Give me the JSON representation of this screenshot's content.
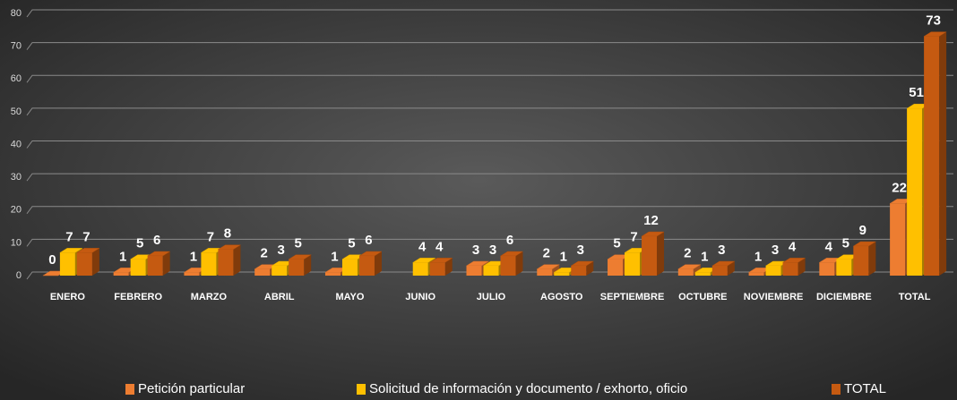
{
  "chart_data": {
    "type": "bar3d",
    "categories": [
      "ENERO",
      "FEBRERO",
      "MARZO",
      "ABRIL",
      "MAYO",
      "JUNIO",
      "JULIO",
      "AGOSTO",
      "SEPTIEMBRE",
      "OCTUBRE",
      "NOVIEMBRE",
      "DICIEMBRE",
      "TOTAL"
    ],
    "series": [
      {
        "name": "Petición particular",
        "color": "#ed7d31",
        "values": [
          0,
          1,
          1,
          2,
          1,
          null,
          3,
          2,
          5,
          2,
          1,
          4,
          22
        ]
      },
      {
        "name": "Solicitud de información y documento / exhorto, oficio",
        "color": "#ffc000",
        "values": [
          7,
          5,
          7,
          3,
          5,
          4,
          3,
          1,
          7,
          1,
          3,
          5,
          51
        ]
      },
      {
        "name": "TOTAL",
        "color": "#c55a11",
        "values": [
          7,
          6,
          8,
          5,
          6,
          4,
          6,
          3,
          12,
          3,
          4,
          9,
          73
        ]
      }
    ],
    "ylim": [
      0,
      80
    ],
    "yticks": [
      0,
      10,
      20,
      30,
      40,
      50,
      60,
      70,
      80
    ],
    "grid": true,
    "legend": "bottom"
  }
}
